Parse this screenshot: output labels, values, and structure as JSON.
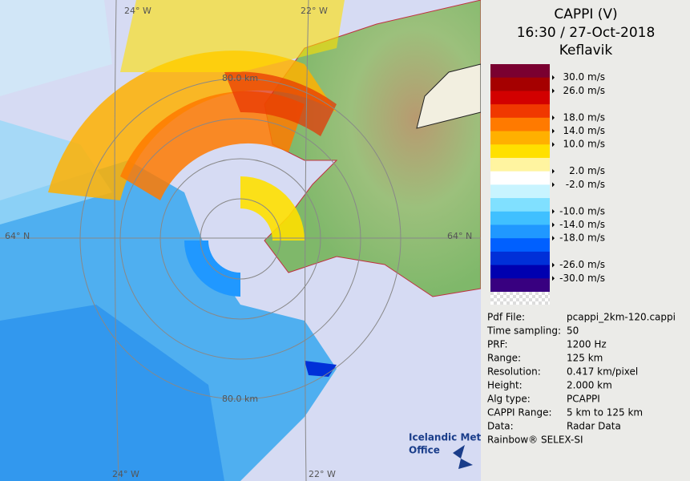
{
  "header": {
    "lines": [
      "CAPPI (V)",
      "16:30 / 27-Oct-2018",
      "Keflavik"
    ]
  },
  "legend": {
    "colors": [
      "#7a0030",
      "#a50000",
      "#d20000",
      "#f03800",
      "#ff7a00",
      "#ffb000",
      "#ffe000",
      "#fff4a0",
      "#ffffff",
      "#c8f4ff",
      "#80e0ff",
      "#40c0ff",
      "#2098ff",
      "#0060ff",
      "#0030d8",
      "#0000b0",
      "#380080"
    ],
    "labels": [
      "30.0 m/s",
      "26.0 m/s",
      "18.0 m/s",
      "14.0 m/s",
      "10.0 m/s",
      "2.0 m/s",
      "-2.0 m/s",
      "-10.0 m/s",
      "-14.0 m/s",
      "-18.0 m/s",
      "-26.0 m/s",
      "-30.0 m/s"
    ]
  },
  "info": [
    [
      "Pdf File:",
      "pcappi_2km-120.cappi"
    ],
    [
      "Time sampling:",
      "50"
    ],
    [
      "PRF:",
      "1200 Hz"
    ],
    [
      "Range:",
      "125 km"
    ],
    [
      "Resolution:",
      "0.417 km/pixel"
    ],
    [
      "Height:",
      "2.000 km"
    ],
    [
      "Alg type:",
      "PCAPPI"
    ],
    [
      "CAPPI Range:",
      "5 km to 125 km"
    ],
    [
      "Data:",
      "Radar Data"
    ]
  ],
  "footer": "Rainbow® SELEX-SI",
  "map": {
    "lon_top_left": "24° W",
    "lon_top_right": "22° W",
    "lon_bottom_left": "24° W",
    "lon_bottom_right": "22° W",
    "lat_left": "64° N",
    "lat_right": "64° N",
    "range_top": "80.0 km",
    "range_bottom": "80.0 km"
  },
  "logo": {
    "line1": "Icelandic Met",
    "line2": "Office"
  }
}
